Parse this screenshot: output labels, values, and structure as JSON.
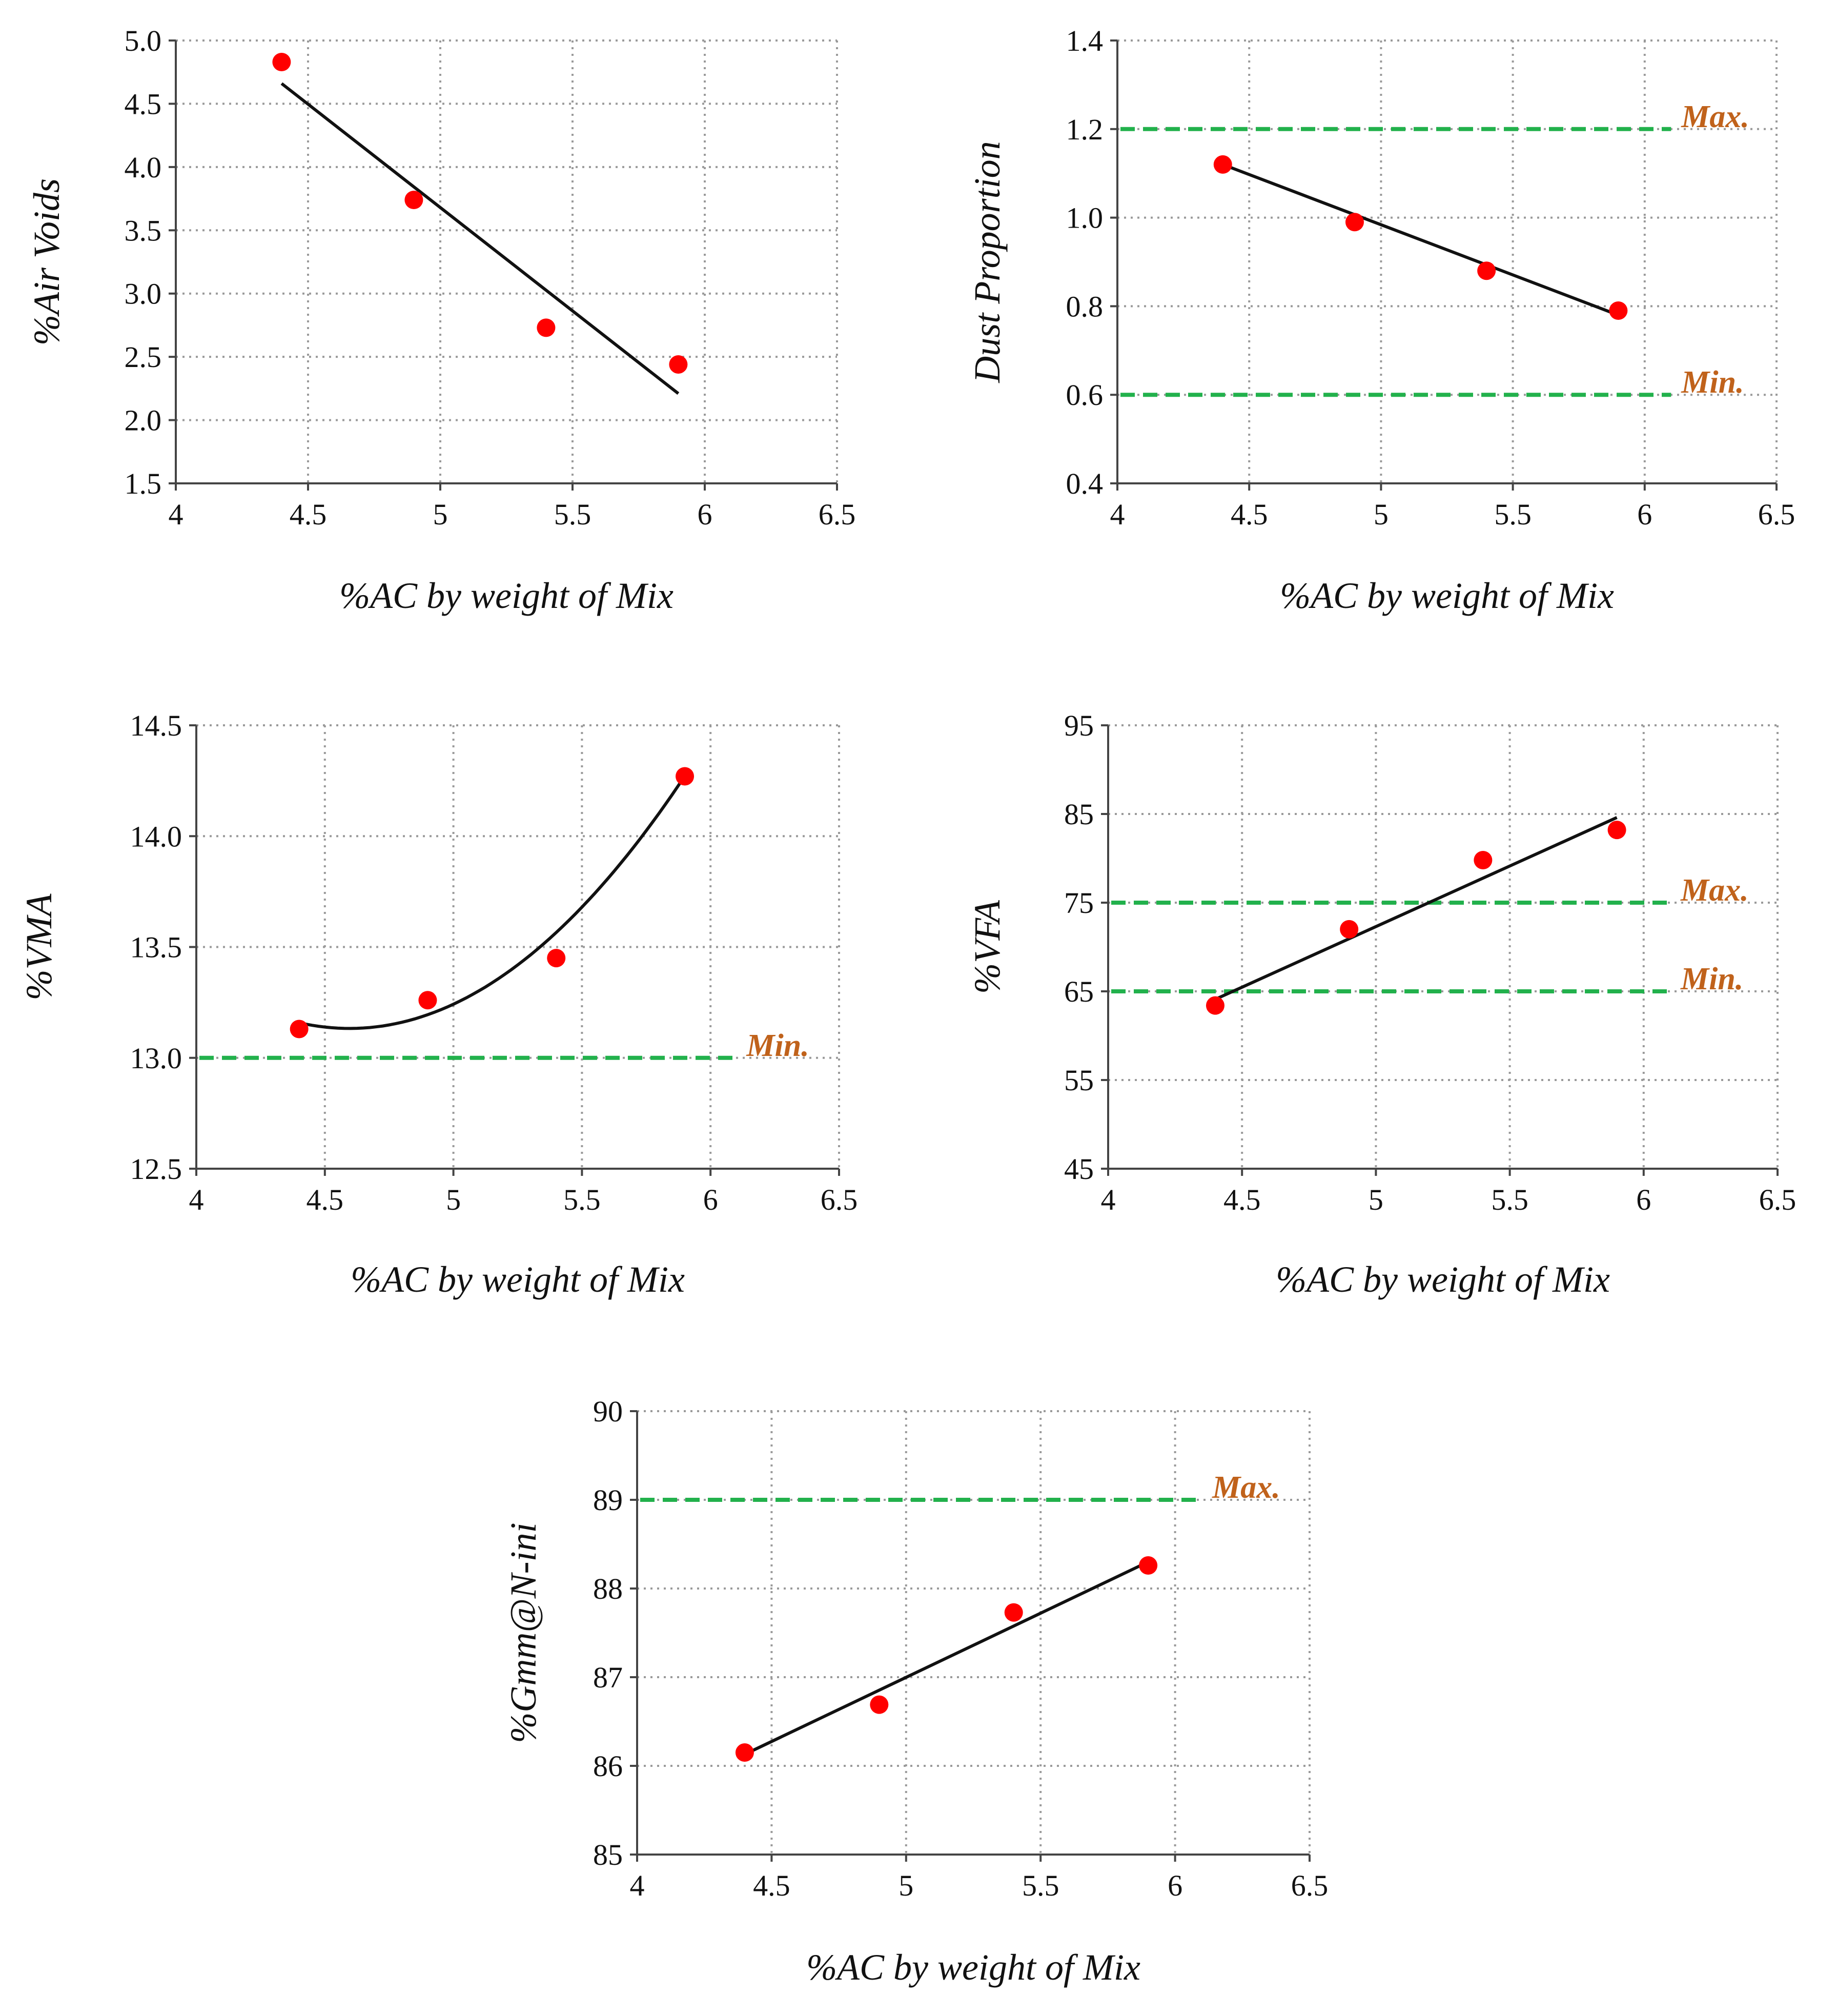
{
  "colors": {
    "point": "#ff0000",
    "limit_line": "#22b14c",
    "limit_label": "#c0621b",
    "fit_line": "#111111",
    "grid": "#9a9a9a"
  },
  "chart_data": [
    {
      "id": "air-voids",
      "type": "scatter",
      "xlabel": "%AC by weight of Mix",
      "ylabel": "%Air Voids",
      "xlim": [
        4,
        6.5
      ],
      "ylim": [
        1.5,
        5.0
      ],
      "xticks": [
        4,
        4.5,
        5,
        5.5,
        6,
        6.5
      ],
      "xtick_labels": [
        "4",
        "4.5",
        "5",
        "5.5",
        "6",
        "6.5"
      ],
      "yticks": [
        1.5,
        2.0,
        2.5,
        3.0,
        3.5,
        4.0,
        4.5,
        5.0
      ],
      "ytick_labels": [
        "1.5",
        "2.0",
        "2.5",
        "3.0",
        "3.5",
        "4.0",
        "4.5",
        "5.0"
      ],
      "x": [
        4.4,
        4.9,
        5.4,
        5.9
      ],
      "y": [
        4.83,
        3.74,
        2.73,
        2.44
      ],
      "fit": {
        "kind": "linear",
        "x": [
          4.4,
          5.9
        ],
        "y": [
          4.66,
          2.21
        ]
      },
      "limits": []
    },
    {
      "id": "dust-proportion",
      "type": "scatter",
      "xlabel": "%AC by weight of Mix",
      "ylabel": "Dust Proportion",
      "xlim": [
        4,
        6.5
      ],
      "ylim": [
        0.4,
        1.4
      ],
      "xticks": [
        4,
        4.5,
        5,
        5.5,
        6,
        6.5
      ],
      "xtick_labels": [
        "4",
        "4.5",
        "5",
        "5.5",
        "6",
        "6.5"
      ],
      "yticks": [
        0.4,
        0.6,
        0.8,
        1.0,
        1.2,
        1.4
      ],
      "ytick_labels": [
        "0.4",
        "0.6",
        "0.8",
        "1.0",
        "1.2",
        "1.4"
      ],
      "x": [
        4.4,
        4.9,
        5.4,
        5.9
      ],
      "y": [
        1.12,
        0.99,
        0.88,
        0.79
      ],
      "fit": {
        "kind": "linear",
        "x": [
          4.4,
          5.9
        ],
        "y": [
          1.12,
          0.78
        ]
      },
      "limits": [
        {
          "label": "Max.",
          "value": 1.2,
          "x_end": 6.1
        },
        {
          "label": "Min.",
          "value": 0.6,
          "x_end": 6.1
        }
      ]
    },
    {
      "id": "vma",
      "type": "scatter",
      "xlabel": "%AC by weight of Mix",
      "ylabel": "%VMA",
      "xlim": [
        4,
        6.5
      ],
      "ylim": [
        12.5,
        14.5
      ],
      "xticks": [
        4,
        4.5,
        5,
        5.5,
        6,
        6.5
      ],
      "xtick_labels": [
        "4",
        "4.5",
        "5",
        "5.5",
        "6",
        "6.5"
      ],
      "yticks": [
        12.5,
        13.0,
        13.5,
        14.0,
        14.5
      ],
      "ytick_labels": [
        "12.5",
        "13.0",
        "13.5",
        "14.0",
        "14.5"
      ],
      "x": [
        4.4,
        4.9,
        5.4,
        5.9
      ],
      "y": [
        13.13,
        13.26,
        13.45,
        14.27
      ],
      "fit": {
        "kind": "quadratic",
        "x": [
          4.4,
          4.9,
          5.4,
          5.9
        ],
        "y": [
          13.16,
          13.19,
          13.57,
          14.27
        ]
      },
      "limits": [
        {
          "label": "Min.",
          "value": 13.0,
          "x_end": 6.1
        }
      ]
    },
    {
      "id": "vfa",
      "type": "scatter",
      "xlabel": "%AC by weight of Mix",
      "ylabel": "%VFA",
      "xlim": [
        4,
        6.5
      ],
      "ylim": [
        45,
        95
      ],
      "xticks": [
        4,
        4.5,
        5,
        5.5,
        6,
        6.5
      ],
      "xtick_labels": [
        "4",
        "4.5",
        "5",
        "5.5",
        "6",
        "6.5"
      ],
      "yticks": [
        45,
        55,
        65,
        75,
        85,
        95
      ],
      "ytick_labels": [
        "45",
        "55",
        "65",
        "75",
        "85",
        "95"
      ],
      "x": [
        4.4,
        4.9,
        5.4,
        5.9
      ],
      "y": [
        63.4,
        72.0,
        79.8,
        83.2
      ],
      "fit": {
        "kind": "linear",
        "x": [
          4.4,
          5.9
        ],
        "y": [
          64.1,
          84.6
        ]
      },
      "limits": [
        {
          "label": "Max.",
          "value": 75,
          "x_end": 6.1
        },
        {
          "label": "Min.",
          "value": 65,
          "x_end": 6.1
        }
      ]
    },
    {
      "id": "gmm-nini",
      "type": "scatter",
      "xlabel": "%AC by weight of Mix",
      "ylabel": "%Gmm@N-ini",
      "xlim": [
        4,
        6.5
      ],
      "ylim": [
        85,
        90
      ],
      "xticks": [
        4,
        4.5,
        5,
        5.5,
        6,
        6.5
      ],
      "xtick_labels": [
        "4",
        "4.5",
        "5",
        "5.5",
        "6",
        "6.5"
      ],
      "yticks": [
        85,
        86,
        87,
        88,
        89,
        90
      ],
      "ytick_labels": [
        "85",
        "86",
        "87",
        "88",
        "89",
        "90"
      ],
      "x": [
        4.4,
        4.9,
        5.4,
        5.9
      ],
      "y": [
        86.15,
        86.69,
        87.73,
        88.26
      ],
      "fit": {
        "kind": "linear",
        "x": [
          4.4,
          5.9
        ],
        "y": [
          86.13,
          88.3
        ]
      },
      "limits": [
        {
          "label": "Max.",
          "value": 89,
          "x_end": 6.1
        }
      ]
    }
  ]
}
